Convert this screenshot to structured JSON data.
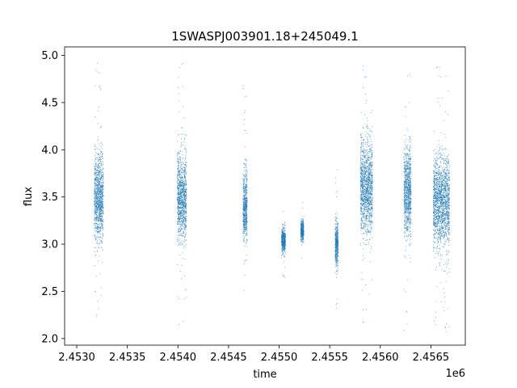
{
  "chart_data": {
    "type": "scatter",
    "title": "1SWASPJ003901.18+245049.1",
    "xlabel": "time",
    "ylabel": "flux",
    "x_offset_label": "1e6",
    "x_tick_values": [
      2453000,
      2453500,
      2454000,
      2454500,
      2455000,
      2455500,
      2456000,
      2456500
    ],
    "x_tick_labels": [
      "2.4530",
      "2.4535",
      "2.4540",
      "2.4545",
      "2.4550",
      "2.4555",
      "2.4560",
      "2.4565"
    ],
    "y_tick_values": [
      2.0,
      2.5,
      3.0,
      3.5,
      4.0,
      4.5,
      5.0
    ],
    "y_tick_labels": [
      "2.0",
      "2.5",
      "3.0",
      "3.5",
      "4.0",
      "4.5",
      "5.0"
    ],
    "xlim": [
      2452880,
      2456840
    ],
    "ylim": [
      1.93,
      5.09
    ],
    "grid": false,
    "color": "#1f77b4",
    "observing_seasons": [
      {
        "time_range": [
          2453170,
          2453260
        ],
        "flux_range": [
          2.05,
          4.95
        ],
        "flux_center": 3.5
      },
      {
        "time_range": [
          2453990,
          2454080
        ],
        "flux_range": [
          2.15,
          4.92
        ],
        "flux_center": 3.5
      },
      {
        "time_range": [
          2454640,
          2454680
        ],
        "flux_range": [
          2.5,
          4.75
        ],
        "flux_center": 3.4
      },
      {
        "time_range": [
          2455020,
          2455060
        ],
        "flux_range": [
          2.65,
          3.45
        ],
        "flux_center": 3.05
      },
      {
        "time_range": [
          2455210,
          2455240
        ],
        "flux_range": [
          2.75,
          3.45
        ],
        "flux_center": 3.15
      },
      {
        "time_range": [
          2455550,
          2455580
        ],
        "flux_range": [
          2.3,
          3.85
        ],
        "flux_center": 3.0
      },
      {
        "time_range": [
          2455800,
          2455920
        ],
        "flux_range": [
          2.05,
          4.97
        ],
        "flux_center": 3.6
      },
      {
        "time_range": [
          2456230,
          2456300
        ],
        "flux_range": [
          2.05,
          4.95
        ],
        "flux_center": 3.55
      },
      {
        "time_range": [
          2456520,
          2456680
        ],
        "flux_range": [
          2.05,
          4.97
        ],
        "flux_center": 3.45
      }
    ]
  }
}
